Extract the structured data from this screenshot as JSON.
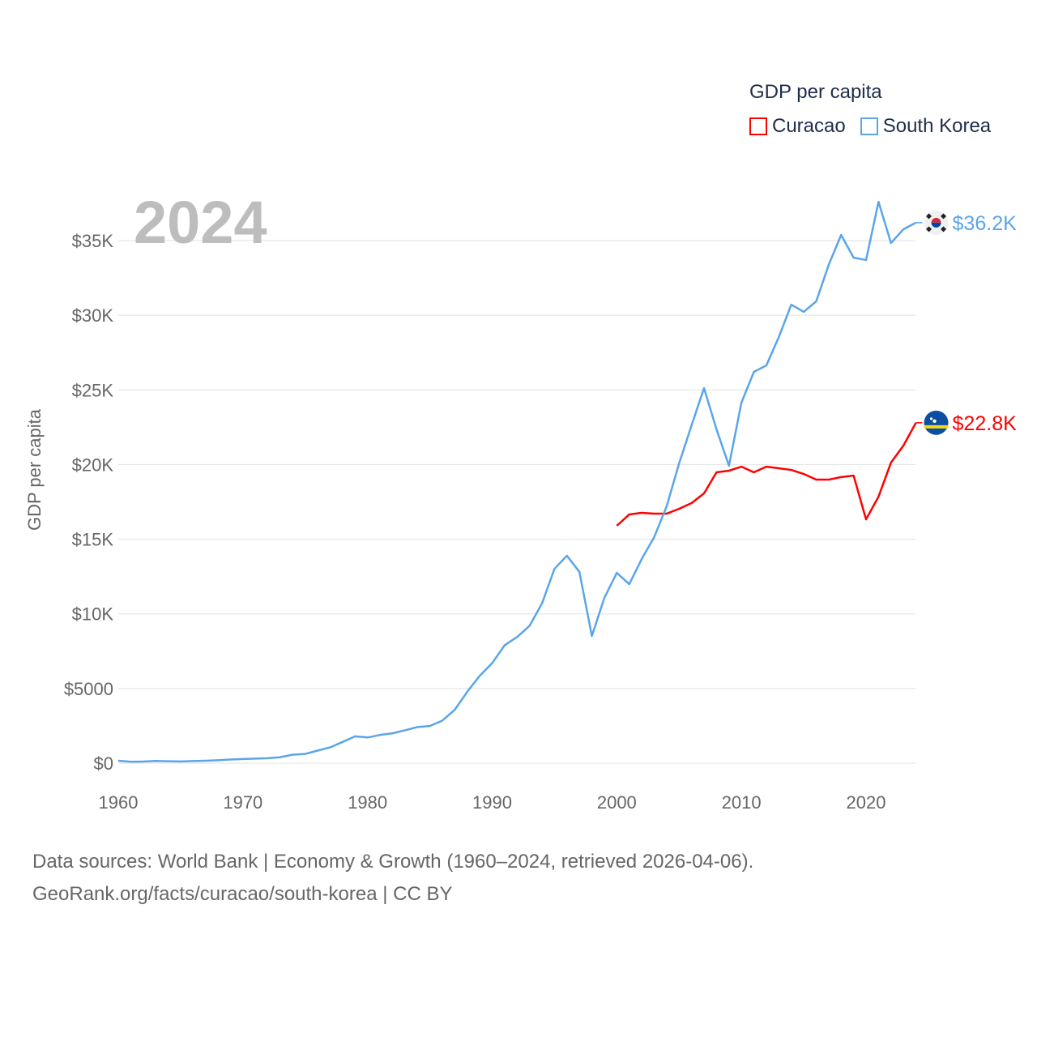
{
  "chart_data": {
    "type": "line",
    "title": "2024",
    "xlabel": "",
    "ylabel": "GDP per capita",
    "xlim": [
      1960,
      2024
    ],
    "ylim": [
      0,
      38000
    ],
    "grid": true,
    "x_ticks": [
      1960,
      1970,
      1980,
      1990,
      2000,
      2010,
      2020
    ],
    "x_tick_labels": [
      "1960",
      "1970",
      "1980",
      "1990",
      "2000",
      "2010",
      "2020"
    ],
    "y_ticks": [
      0,
      5000,
      10000,
      15000,
      20000,
      25000,
      30000,
      35000
    ],
    "y_tick_labels": [
      "$0",
      "$5000",
      "$10K",
      "$15K",
      "$20K",
      "$25K",
      "$30K",
      "$35K"
    ],
    "legend": {
      "title": "GDP per capita",
      "placement": "top-right"
    },
    "series": [
      {
        "name": "Curacao",
        "color": "#ff0000",
        "end_label": "$22.8K",
        "flag": "curacao-flag",
        "x": [
          2000,
          2001,
          2002,
          2003,
          2004,
          2005,
          2006,
          2007,
          2008,
          2009,
          2010,
          2011,
          2012,
          2013,
          2014,
          2015,
          2016,
          2017,
          2018,
          2019,
          2020,
          2021,
          2022,
          2023,
          2024
        ],
        "values": [
          15900,
          16660,
          16770,
          16710,
          16710,
          17040,
          17420,
          18070,
          19480,
          19590,
          19860,
          19480,
          19860,
          19750,
          19640,
          19370,
          18990,
          18990,
          19160,
          19260,
          16330,
          17850,
          20130,
          21270,
          22800
        ]
      },
      {
        "name": "South Korea",
        "color": "#5aa5ea",
        "end_label": "$36.2K",
        "flag": "south-korea-flag",
        "x": [
          1960,
          1961,
          1962,
          1963,
          1964,
          1965,
          1966,
          1967,
          1968,
          1969,
          1970,
          1971,
          1972,
          1973,
          1974,
          1975,
          1976,
          1977,
          1978,
          1979,
          1980,
          1981,
          1982,
          1983,
          1984,
          1985,
          1986,
          1987,
          1988,
          1989,
          1990,
          1991,
          1992,
          1993,
          1994,
          1995,
          1996,
          1997,
          1998,
          1999,
          2000,
          2001,
          2002,
          2003,
          2004,
          2005,
          2006,
          2007,
          2008,
          2009,
          2010,
          2011,
          2012,
          2013,
          2014,
          2015,
          2016,
          2017,
          2018,
          2019,
          2020,
          2021,
          2022,
          2023,
          2024
        ],
        "values": [
          160,
          95,
          110,
          150,
          130,
          115,
          140,
          165,
          200,
          245,
          280,
          305,
          330,
          400,
          570,
          620,
          840,
          1060,
          1420,
          1800,
          1720,
          1890,
          2000,
          2200,
          2420,
          2490,
          2850,
          3580,
          4780,
          5850,
          6700,
          7900,
          8450,
          9200,
          10700,
          13020,
          13890,
          12810,
          8520,
          11070,
          12750,
          11990,
          13680,
          15140,
          17200,
          20080,
          22630,
          25120,
          22360,
          19920,
          24150,
          26210,
          26640,
          28540,
          30710,
          30230,
          30930,
          33370,
          35380,
          33860,
          33700,
          37600,
          34840,
          35760,
          36200
        ]
      }
    ]
  },
  "source_line1": "Data sources: World Bank | Economy & Growth (1960–2024, retrieved 2026-04-06).",
  "source_line2": "GeoRank.org/facts/curacao/south-korea | CC BY"
}
